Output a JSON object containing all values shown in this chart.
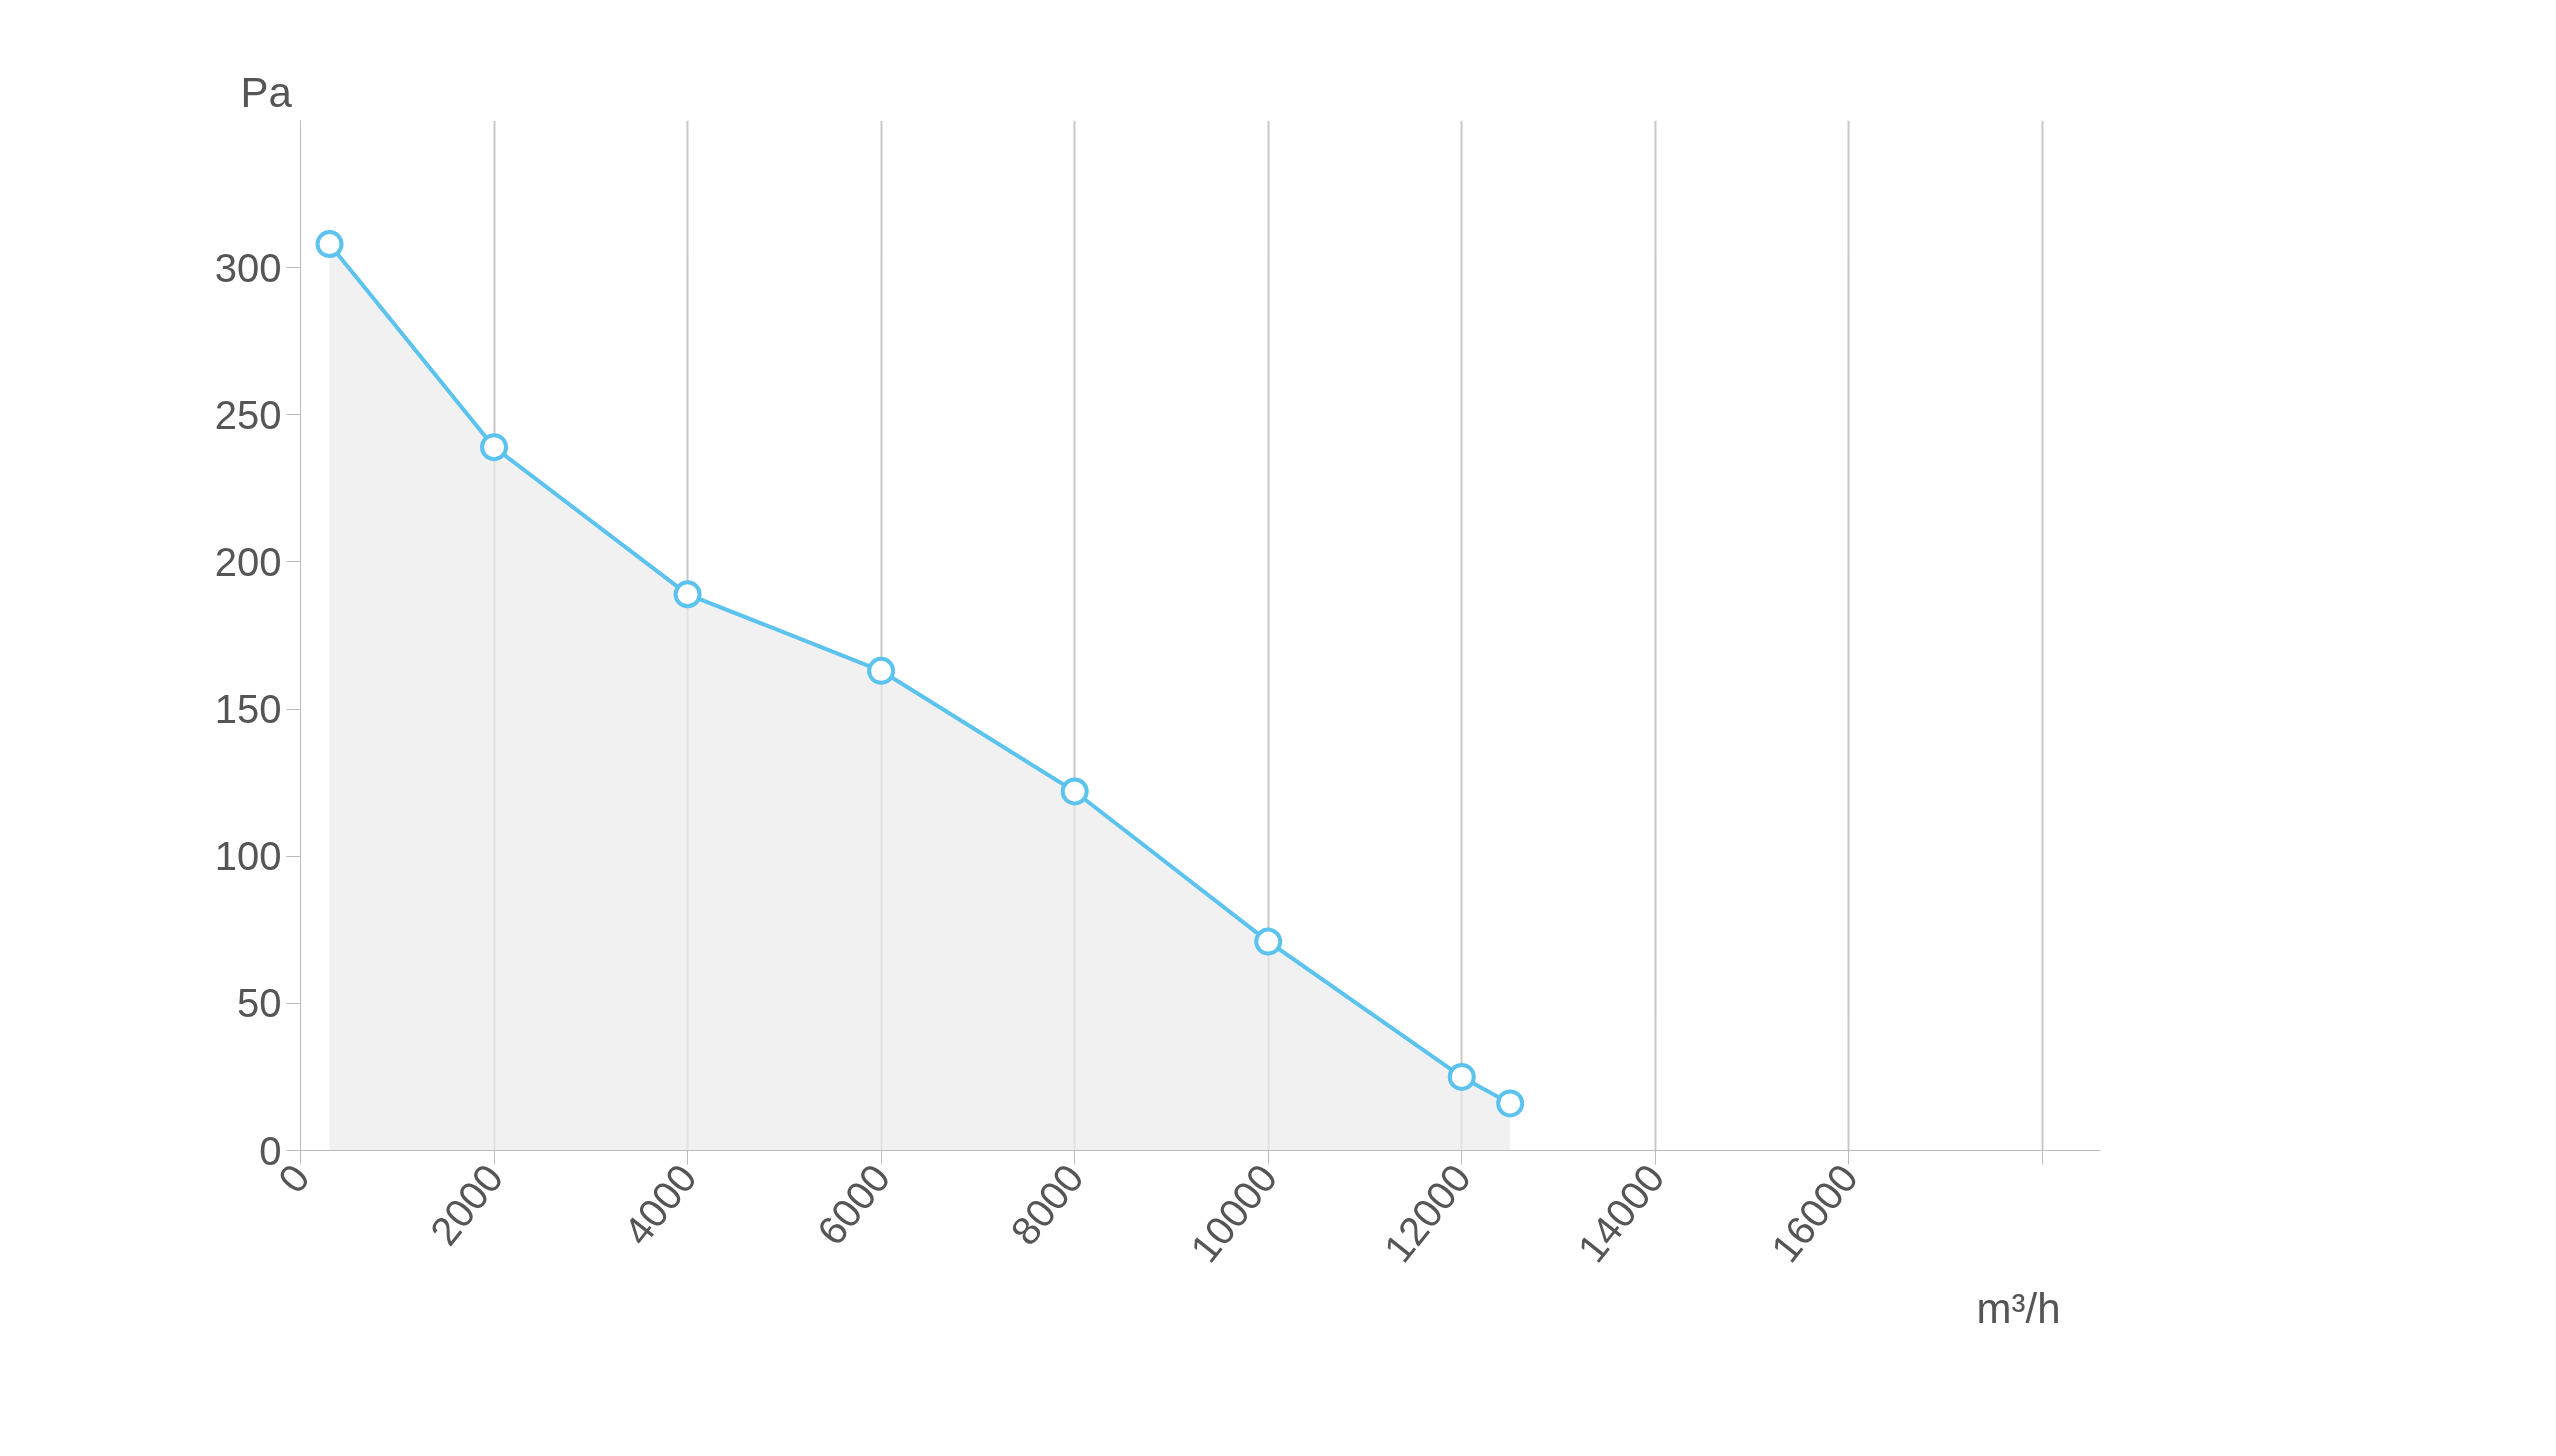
{
  "chart_data": {
    "type": "area",
    "xlabel": "m³/h",
    "ylabel": "Pa",
    "x": [
      300,
      2000,
      4000,
      6000,
      8000,
      10000,
      12000,
      12500
    ],
    "series": [
      {
        "color": "#5bc3ee",
        "values": [
          308,
          239,
          189,
          163,
          122,
          71,
          25,
          16
        ]
      }
    ],
    "xlim": [
      0,
      18600
    ],
    "ylim": [
      0,
      350
    ],
    "xticks": [
      0,
      2000,
      4000,
      6000,
      8000,
      10000,
      12000,
      14000,
      16000,
      {
        "value": 18000,
        "label": null
      }
    ],
    "yticks": [
      0,
      50,
      100,
      150,
      200,
      250,
      300
    ],
    "grid": "x",
    "marker": "circle",
    "line_style": "solid"
  }
}
